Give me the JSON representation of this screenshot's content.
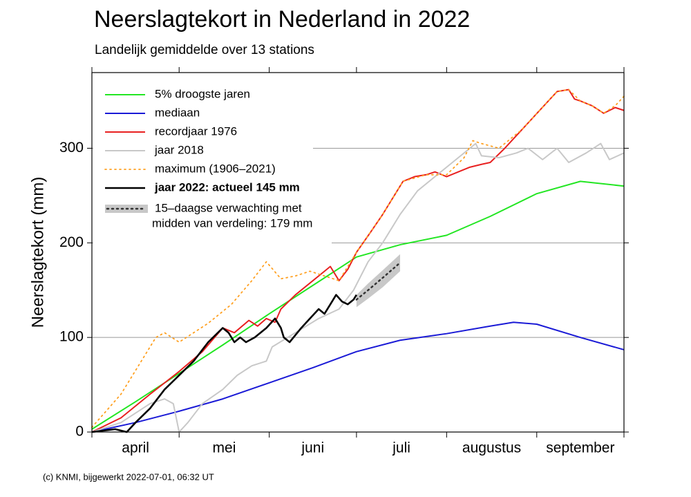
{
  "chart_data": {
    "type": "line",
    "title": "Neerslagtekort in Nederland in 2022",
    "subtitle": "Landelijk gemiddelde over 13 stations",
    "ylabel": "Neerslagtekort (mm)",
    "footer": "(c) KNMI, bijgewerkt 2022-07-01, 06:32 UT",
    "xlim": [
      0,
      183
    ],
    "ylim": [
      0,
      380
    ],
    "yticks": [
      0,
      100,
      200,
      300
    ],
    "xticks": [
      {
        "value": 15,
        "label": "april"
      },
      {
        "value": 45.5,
        "label": "mei"
      },
      {
        "value": 76,
        "label": "juni"
      },
      {
        "value": 106.5,
        "label": "juli"
      },
      {
        "value": 137.5,
        "label": "augustus"
      },
      {
        "value": 168,
        "label": "september"
      }
    ],
    "month_starts": [
      0,
      30,
      61,
      91,
      122,
      153,
      183
    ],
    "grid": true,
    "legend": "upper left",
    "series": [
      {
        "name": "5% droogste jaren",
        "color": "#22e622",
        "width": 2,
        "x": [
          0,
          15,
          30,
          45,
          61,
          76,
          91,
          106,
          122,
          137,
          153,
          168,
          183
        ],
        "values": [
          3,
          32,
          62,
          92,
          125,
          155,
          185,
          198,
          208,
          228,
          252,
          265,
          260
        ]
      },
      {
        "name": "mediaan",
        "color": "#1a1ad6",
        "width": 2,
        "x": [
          0,
          15,
          30,
          45,
          61,
          76,
          91,
          106,
          122,
          137,
          145,
          153,
          168,
          183
        ],
        "values": [
          0,
          10,
          22,
          35,
          52,
          68,
          85,
          97,
          104,
          112,
          116,
          114,
          100,
          87
        ]
      },
      {
        "name": "recordjaar 1976",
        "color": "#e82020",
        "width": 2,
        "x": [
          0,
          10,
          20,
          30,
          38,
          45,
          49,
          54,
          57,
          60,
          63,
          65,
          70,
          76,
          80,
          82,
          85,
          88,
          91,
          96,
          100,
          104,
          107,
          111,
          115,
          118,
          122,
          126,
          130,
          134,
          137,
          142,
          148,
          154,
          160,
          164,
          166,
          168,
          172,
          176,
          180,
          183
        ],
        "values": [
          0,
          15,
          40,
          64,
          85,
          110,
          105,
          118,
          112,
          120,
          116,
          130,
          145,
          160,
          170,
          175,
          160,
          172,
          190,
          212,
          230,
          250,
          265,
          270,
          272,
          275,
          270,
          275,
          280,
          283,
          285,
          300,
          320,
          340,
          360,
          362,
          352,
          350,
          345,
          337,
          343,
          340
        ]
      },
      {
        "name": "jaar 2018",
        "color": "#c8c8c8",
        "width": 2,
        "x": [
          0,
          10,
          20,
          25,
          28,
          30,
          33,
          38,
          45,
          50,
          55,
          60,
          62,
          70,
          78,
          85,
          90,
          95,
          100,
          106,
          112,
          118,
          124,
          130,
          132,
          134,
          140,
          146,
          150,
          155,
          160,
          164,
          170,
          175,
          178,
          183
        ],
        "values": [
          0,
          10,
          30,
          35,
          30,
          0,
          10,
          30,
          45,
          60,
          70,
          75,
          90,
          105,
          120,
          130,
          150,
          180,
          200,
          230,
          255,
          270,
          285,
          300,
          305,
          292,
          290,
          295,
          300,
          288,
          300,
          285,
          295,
          305,
          288,
          295
        ]
      },
      {
        "name": "maximum (1906–2021)",
        "color": "#ffa020",
        "width": 1.8,
        "dash": "dotted",
        "x": [
          0,
          10,
          18,
          22,
          25,
          30,
          35,
          40,
          48,
          55,
          60,
          65,
          70,
          75,
          80,
          85,
          91,
          100,
          107,
          115,
          122,
          128,
          131,
          134,
          140,
          148,
          154,
          160,
          164,
          168,
          172,
          176,
          180,
          183
        ],
        "values": [
          5,
          40,
          80,
          100,
          105,
          95,
          105,
          115,
          135,
          160,
          180,
          162,
          165,
          170,
          165,
          160,
          190,
          230,
          265,
          272,
          272,
          290,
          308,
          305,
          300,
          320,
          340,
          360,
          362,
          350,
          345,
          337,
          345,
          355
        ]
      },
      {
        "name": "jaar 2022: actueel 145 mm",
        "color": "#000000",
        "width": 2.6,
        "bold": true,
        "x": [
          0,
          8,
          12,
          15,
          20,
          25,
          30,
          35,
          40,
          45,
          47,
          49,
          51,
          53,
          56,
          60,
          63,
          65,
          66,
          68,
          72,
          75,
          78,
          80,
          82,
          84,
          86,
          88,
          90,
          91
        ],
        "values": [
          0,
          3,
          0,
          10,
          25,
          45,
          60,
          75,
          95,
          110,
          105,
          95,
          100,
          95,
          100,
          110,
          120,
          110,
          100,
          95,
          110,
          120,
          130,
          125,
          135,
          145,
          138,
          135,
          140,
          145
        ]
      }
    ],
    "forecast": {
      "name": [
        "15–daagse verwachting met",
        "midden van verdeling: 179 mm"
      ],
      "color": "#c8c8c8",
      "x": [
        91,
        95,
        100,
        106
      ],
      "values": [
        140,
        150,
        163,
        179
      ],
      "low": [
        132,
        141,
        153,
        170
      ],
      "high": [
        145,
        157,
        171,
        188
      ]
    }
  }
}
